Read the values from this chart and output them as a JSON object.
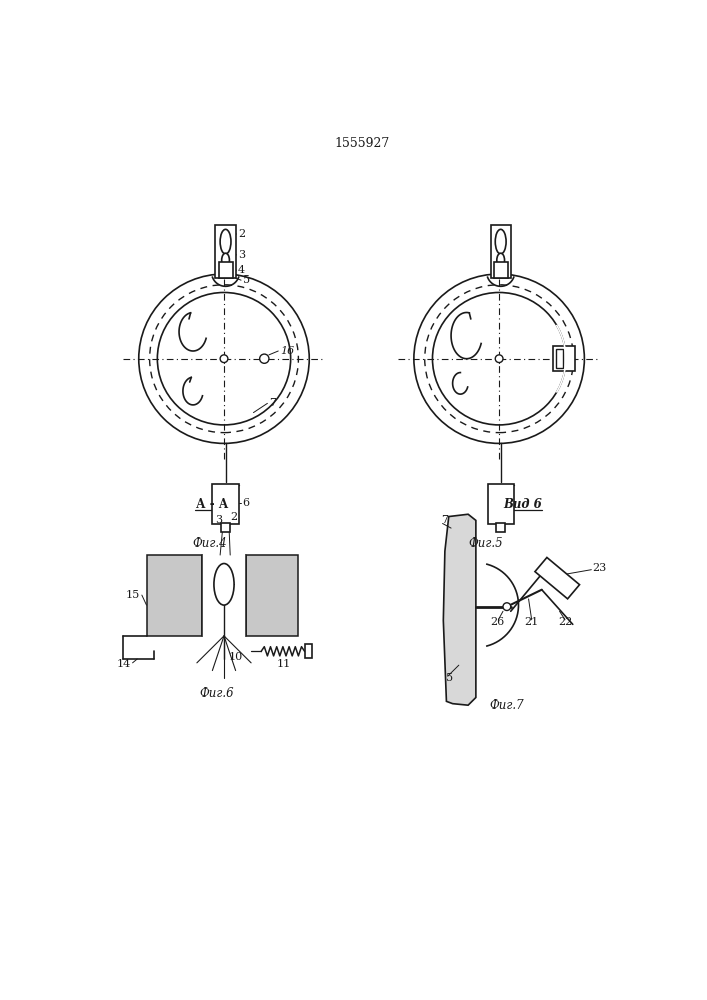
{
  "title": "1555927",
  "bg_color": "#ffffff",
  "line_color": "#1a1a1a",
  "fig4_label": "Фиг.4",
  "fig5_label": "Фиг.5",
  "fig6_label": "Фиг.6",
  "fig7_label": "Фиг.7",
  "vid6_label": "Вид 6",
  "aa_label": "А - А"
}
